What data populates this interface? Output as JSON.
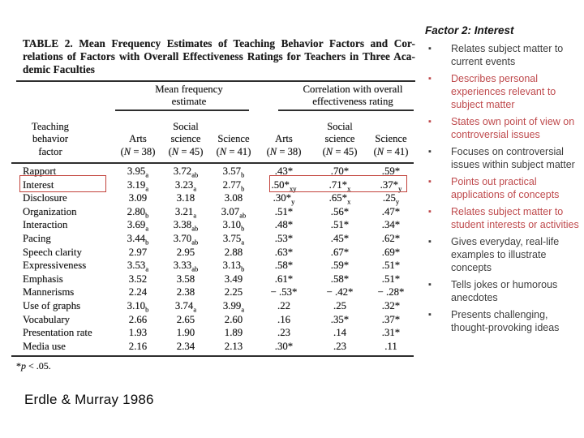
{
  "table": {
    "title_lines": [
      "TABLE 2. Mean Frequency Estimates of Teaching Behavior Factors and Cor-",
      "relations of Factors with Overall Effectiveness Ratings for Teachers in Three Aca-",
      "demic Faculties"
    ],
    "group_headers": [
      {
        "lines": [
          "Mean frequency",
          "estimate"
        ]
      },
      {
        "lines": [
          "Correlation with overall",
          "effectiveness rating"
        ]
      }
    ],
    "stub_header_lines": [
      "Teaching",
      "behavior",
      "factor"
    ],
    "column_headers": [
      {
        "lines": [
          "Arts",
          "(N = 38)"
        ]
      },
      {
        "lines": [
          "Social",
          "science",
          "(N = 45)"
        ]
      },
      {
        "lines": [
          "Science",
          "(N = 41)"
        ]
      },
      {
        "lines": [
          "Arts",
          "(N = 38)"
        ]
      },
      {
        "lines": [
          "Social",
          "science",
          "(N = 45)"
        ]
      },
      {
        "lines": [
          "Science",
          "(N = 41)"
        ]
      }
    ],
    "rows": [
      {
        "label": "Rapport",
        "cells": [
          "3.95_a",
          "3.72_ab",
          "3.57_b",
          ".43*",
          ".70*",
          ".59*"
        ]
      },
      {
        "label": "Interest",
        "highlight": true,
        "cells": [
          "3.19_a",
          "3.23_a",
          "2.77_b",
          ".50*_xy",
          ".71*_x",
          ".37*_y"
        ]
      },
      {
        "label": "Disclosure",
        "cells": [
          "3.09",
          "3.18",
          "3.08",
          ".30*_y",
          ".65*_x",
          ".25_y"
        ]
      },
      {
        "label": "Organization",
        "cells": [
          "2.80_b",
          "3.21_a",
          "3.07_ab",
          ".51*",
          ".56*",
          ".47*"
        ]
      },
      {
        "label": "Interaction",
        "cells": [
          "3.69_a",
          "3.38_ab",
          "3.10_b",
          ".48*",
          ".51*",
          ".34*"
        ]
      },
      {
        "label": "Pacing",
        "cells": [
          "3.44_b",
          "3.70_ab",
          "3.75_a",
          ".53*",
          ".45*",
          ".62*"
        ]
      },
      {
        "label": "Speech clarity",
        "cells": [
          "2.97",
          "2.95",
          "2.88",
          ".63*",
          ".67*",
          ".69*"
        ]
      },
      {
        "label": "Expressiveness",
        "cells": [
          "3.53_a",
          "3.33_ab",
          "3.13_b",
          ".58*",
          ".59*",
          ".51*"
        ]
      },
      {
        "label": "Emphasis",
        "cells": [
          "3.52",
          "3.58",
          "3.49",
          ".61*",
          ".58*",
          ".51*"
        ]
      },
      {
        "label": "Mannerisms",
        "cells": [
          "2.24",
          "2.38",
          "2.25",
          "− .53*",
          "− .42*",
          "− .28*"
        ]
      },
      {
        "label": "Use of graphs",
        "cells": [
          "3.10_b",
          "3.74_a",
          "3.99_a",
          ".22",
          ".25",
          ".32*"
        ]
      },
      {
        "label": "Vocabulary",
        "cells": [
          "2.66",
          "2.65",
          "2.60",
          ".16",
          ".35*",
          ".37*"
        ]
      },
      {
        "label": "Presentation rate",
        "cells": [
          "1.93",
          "1.90",
          "1.89",
          ".23",
          ".14",
          ".31*"
        ]
      },
      {
        "label": "Media use",
        "cells": [
          "2.16",
          "2.34",
          "2.13",
          ".30*",
          ".23",
          ".11"
        ]
      }
    ],
    "footnote": {
      "pre": "*",
      "italic": "p",
      "post": " < .05."
    }
  },
  "panel": {
    "title": "Factor 2: Interest",
    "bullets": [
      {
        "text": "Relates subject matter to current events",
        "color": "black"
      },
      {
        "text": "Describes personal experiences relevant to subject matter",
        "color": "red"
      },
      {
        "text": "States own point of view on controversial issues",
        "color": "red"
      },
      {
        "text": "Focuses on controversial issues within subject matter",
        "color": "black"
      },
      {
        "text": "Points out practical applications of concepts",
        "color": "red"
      },
      {
        "text": "Relates subject matter to student interests or activities",
        "color": "red"
      },
      {
        "text": "Gives everyday, real-life examples to illustrate concepts",
        "color": "black"
      },
      {
        "text": "Tells jokes or humorous anecdotes",
        "color": "black"
      },
      {
        "text": "Presents challenging, thought-provoking ideas",
        "color": "black"
      }
    ]
  },
  "citation": "Erdle & Murray 1986",
  "colors": {
    "red_text": "#bf4a4d",
    "highlight_box": "#c2423b",
    "body_black": "#3e3e3e"
  }
}
